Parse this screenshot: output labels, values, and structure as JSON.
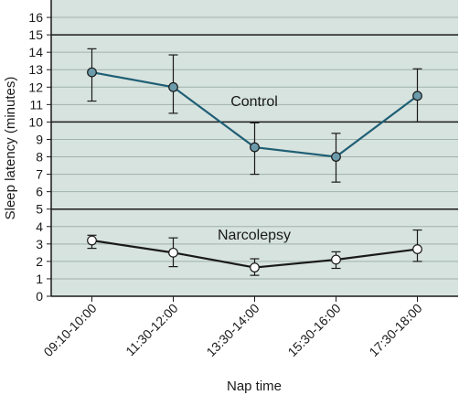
{
  "chart_data": {
    "type": "line",
    "title": "",
    "xlabel": "Nap time",
    "ylabel": "Sleep latency (minutes)",
    "ylim": [
      0,
      17
    ],
    "yticks": [
      0,
      1,
      2,
      3,
      4,
      5,
      6,
      7,
      8,
      9,
      10,
      11,
      12,
      13,
      14,
      15,
      16
    ],
    "major_gridlines": [
      5,
      10,
      15
    ],
    "grid": true,
    "categories": [
      "09:10-10:00",
      "11:30-12:00",
      "13:30-14:00",
      "15:30-16:00",
      "17:30-18:00"
    ],
    "series": [
      {
        "name": "Control",
        "values": [
          12.85,
          12.0,
          8.55,
          8.0,
          11.5
        ],
        "err_low": [
          11.2,
          10.5,
          7.0,
          6.55,
          10.0
        ],
        "err_high": [
          14.2,
          13.85,
          9.95,
          9.35,
          13.05
        ],
        "color": "#1f5f75",
        "marker_fill": "#6b9aaa"
      },
      {
        "name": "Narcolepsy",
        "values": [
          3.2,
          2.5,
          1.65,
          2.1,
          2.7
        ],
        "err_low": [
          2.75,
          1.7,
          1.2,
          1.6,
          2.0
        ],
        "err_high": [
          3.5,
          3.35,
          2.15,
          2.55,
          3.8
        ],
        "color": "#1a1a1a",
        "marker_fill": "#ffffff"
      }
    ],
    "plot_background": "#d7e3de",
    "gridline_color": "#9fb2ab",
    "major_gridline_color": "#1a1a1a"
  }
}
